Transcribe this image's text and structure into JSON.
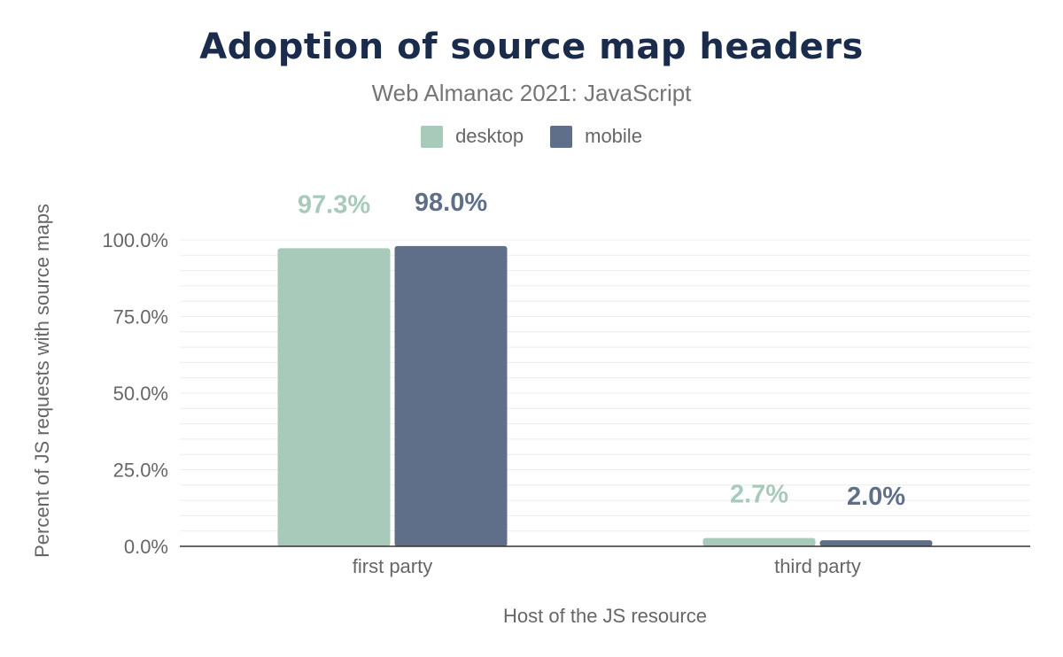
{
  "chart_data": {
    "type": "bar",
    "title": "Adoption of source map headers",
    "subtitle": "Web Almanac 2021: JavaScript",
    "xlabel": "Host of the JS resource",
    "ylabel": "Percent of JS requests with source maps",
    "categories": [
      "first party",
      "third party"
    ],
    "series": [
      {
        "name": "desktop",
        "color": "#a8cabb",
        "values": [
          97.3,
          2.7
        ],
        "labels": [
          "97.3%",
          "2.7%"
        ]
      },
      {
        "name": "mobile",
        "color": "#5f6f8a",
        "values": [
          98.0,
          2.0
        ],
        "labels": [
          "98.0%",
          "2.0%"
        ]
      }
    ],
    "ylim": [
      0,
      100
    ],
    "yticks": [
      {
        "value": 0,
        "label": "0.0%"
      },
      {
        "value": 25,
        "label": "25.0%"
      },
      {
        "value": 50,
        "label": "50.0%"
      },
      {
        "value": 75,
        "label": "75.0%"
      },
      {
        "value": 100,
        "label": "100.0%"
      }
    ],
    "grid": true,
    "legend_position": "top-center"
  }
}
